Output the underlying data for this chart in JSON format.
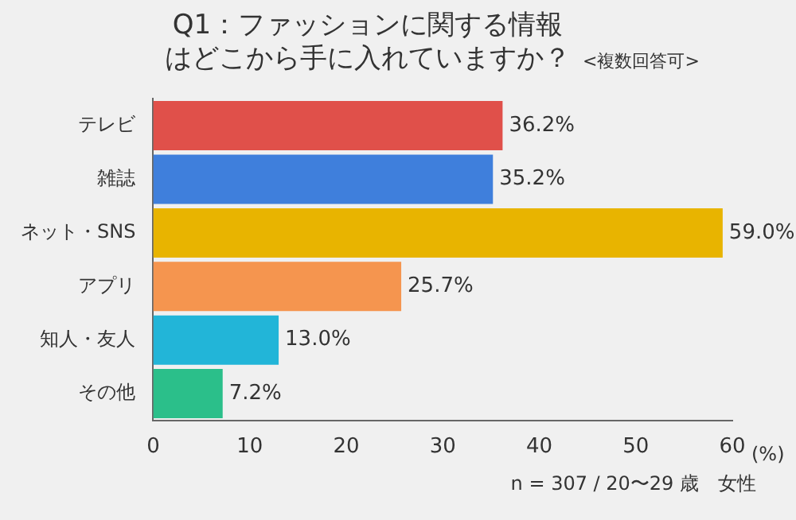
{
  "chart_data": {
    "type": "bar",
    "orientation": "horizontal",
    "title": "Q1：ファッションに関する情報はどこから手に入れていますか？",
    "subtitle": "<複数回答可>",
    "xlabel": "(%)",
    "annotations": [
      "n = 307 / 20〜29 歳　女性"
    ],
    "categories": [
      "テレビ",
      "雑誌",
      "ネット・SNS",
      "アプリ",
      "知人・友人",
      "その他"
    ],
    "values": [
      36.2,
      35.2,
      59.0,
      25.7,
      13.0,
      7.2
    ],
    "colors": [
      "#e0504a",
      "#3f7fdc",
      "#e8b400",
      "#f5954f",
      "#22b5d8",
      "#2bbf8a"
    ],
    "value_labels": [
      "36.2%",
      "35.2%",
      "59.0%",
      "25.7%",
      "13.0%",
      "7.2%"
    ],
    "xlim": [
      0,
      60
    ],
    "xticks": [
      0,
      10,
      20,
      30,
      40,
      50,
      60
    ],
    "grid": false,
    "legend": false
  }
}
